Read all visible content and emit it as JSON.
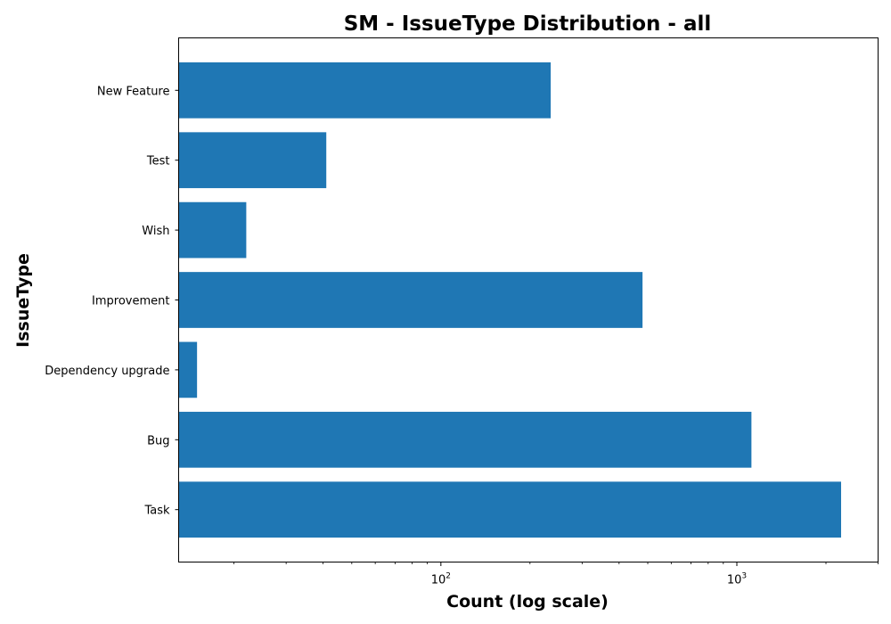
{
  "chart_data": {
    "type": "bar",
    "orientation": "horizontal",
    "title": "SM - IssueType Distribution - all",
    "xlabel": "Count (log scale)",
    "ylabel": "IssueType",
    "x_scale": "log",
    "xlim": [
      13,
      3000
    ],
    "categories": [
      "Task",
      "Bug",
      "Dependency upgrade",
      "Improvement",
      "Wish",
      "Test",
      "New Feature"
    ],
    "values": [
      2250,
      1120,
      15,
      480,
      22,
      41,
      235
    ],
    "x_ticks": [
      100,
      1000
    ],
    "grid": false,
    "bar_color": "#1f77b4"
  }
}
